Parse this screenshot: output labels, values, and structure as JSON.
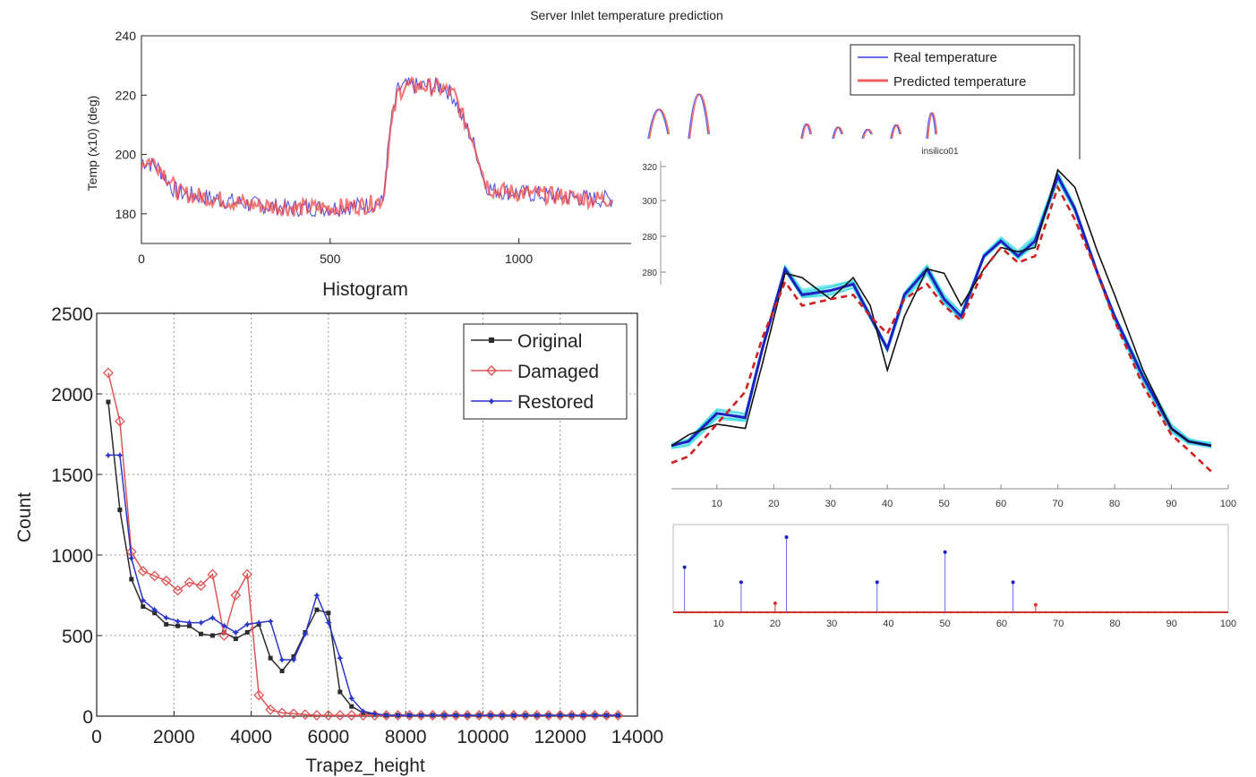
{
  "charts": {
    "server": {
      "title": "Server Inlet temperature prediction",
      "ylabel": "Temp (x10) (deg)",
      "xticks": [
        0,
        500,
        1000
      ],
      "yticks": [
        180,
        200,
        220,
        240
      ],
      "legend": [
        "Real temperature",
        "Predicted temperature"
      ],
      "colors": {
        "real": "#3a3ae0",
        "pred": "#ee4040"
      }
    },
    "histogram": {
      "title": "Histogram",
      "xlabel": "Trapez_height",
      "ylabel": "Count",
      "xticks": [
        0,
        2000,
        4000,
        6000,
        8000,
        10000,
        12000,
        14000
      ],
      "yticks": [
        0,
        500,
        1000,
        1500,
        2000,
        2500
      ],
      "legend": [
        "Original",
        "Damaged",
        "Restored"
      ]
    },
    "insilico": {
      "label": "insilico01"
    },
    "curves": {
      "xticks": [
        10,
        20,
        30,
        40,
        50,
        60,
        70,
        80,
        90,
        100
      ],
      "yticks_top": [
        320,
        300,
        280,
        "280"
      ]
    },
    "stem": {
      "xticks": [
        10,
        20,
        30,
        40,
        50,
        60,
        70,
        80,
        90,
        100
      ]
    }
  },
  "chart_data": [
    {
      "type": "line",
      "title": "Server Inlet temperature prediction",
      "ylabel": "Temp (x10) (deg)",
      "xlim": [
        0,
        1250
      ],
      "ylim": [
        170,
        240
      ],
      "grid": false,
      "legend_position": "top-right",
      "series": [
        {
          "name": "Real temperature",
          "color": "#3a3ae0",
          "x": [
            0,
            20,
            40,
            60,
            80,
            100,
            150,
            200,
            300,
            400,
            500,
            600,
            640,
            660,
            680,
            700,
            750,
            800,
            830,
            850,
            870,
            890,
            910,
            930,
            1000,
            1100,
            1200,
            1250
          ],
          "y": [
            198,
            197,
            196,
            193,
            189,
            187,
            186,
            185,
            183,
            182,
            182,
            183,
            184,
            210,
            222,
            223,
            223,
            223,
            219,
            212,
            207,
            200,
            190,
            188,
            187,
            186,
            185,
            185
          ]
        },
        {
          "name": "Predicted temperature",
          "color": "#ee4040",
          "x": [
            0,
            20,
            40,
            60,
            80,
            100,
            150,
            200,
            300,
            400,
            500,
            600,
            640,
            660,
            680,
            700,
            750,
            800,
            830,
            850,
            870,
            890,
            910,
            930,
            1000,
            1100,
            1200,
            1250
          ],
          "y": [
            197,
            198,
            197,
            194,
            190,
            187,
            186,
            185,
            183,
            182,
            182,
            183,
            185,
            208,
            221,
            223,
            223,
            222,
            220,
            213,
            208,
            201,
            191,
            188,
            187,
            186,
            185,
            185
          ]
        }
      ]
    },
    {
      "type": "line",
      "title": "Histogram",
      "xlabel": "Trapez_height",
      "ylabel": "Count",
      "xlim": [
        0,
        14000
      ],
      "ylim": [
        0,
        2500
      ],
      "grid": true,
      "legend_position": "top-right",
      "series": [
        {
          "name": "Original",
          "color": "#2b2b2b",
          "marker": "square",
          "x": [
            300,
            600,
            900,
            1200,
            1500,
            1800,
            2100,
            2400,
            2700,
            3000,
            3300,
            3600,
            3900,
            4200,
            4500,
            4800,
            5100,
            5400,
            5700,
            6000,
            6300,
            6600,
            6900,
            7200,
            7500,
            7800,
            8100,
            8400,
            8700,
            9000,
            9300,
            9600,
            9900,
            10200,
            10500,
            10800,
            11100,
            11400,
            11700,
            12000,
            12300,
            12600,
            12900,
            13200,
            13500
          ],
          "y": [
            1950,
            1280,
            850,
            680,
            640,
            570,
            560,
            560,
            510,
            500,
            520,
            480,
            520,
            570,
            360,
            280,
            370,
            520,
            660,
            640,
            150,
            60,
            20,
            10,
            5,
            5,
            5,
            5,
            5,
            5,
            5,
            5,
            5,
            5,
            5,
            5,
            5,
            5,
            5,
            5,
            5,
            5,
            5,
            5,
            5
          ]
        },
        {
          "name": "Damaged",
          "color": "#dd5555",
          "marker": "diamond",
          "x": [
            300,
            600,
            900,
            1200,
            1500,
            1800,
            2100,
            2400,
            2700,
            3000,
            3300,
            3600,
            3900,
            4200,
            4500,
            4800,
            5100,
            5400,
            5700,
            6000,
            6300,
            6600,
            6900,
            7200,
            7500,
            7800,
            8100,
            8400,
            8700,
            9000,
            9300,
            9600,
            9900,
            10200,
            10500,
            10800,
            11100,
            11400,
            11700,
            12000,
            12300,
            12600,
            12900,
            13200,
            13500
          ],
          "y": [
            2130,
            1830,
            1020,
            900,
            870,
            840,
            780,
            830,
            810,
            880,
            500,
            750,
            880,
            130,
            40,
            20,
            15,
            10,
            5,
            5,
            5,
            5,
            5,
            5,
            5,
            5,
            5,
            5,
            5,
            5,
            5,
            5,
            5,
            5,
            5,
            5,
            5,
            5,
            5,
            5,
            5,
            5,
            5,
            5,
            5
          ]
        },
        {
          "name": "Restored",
          "color": "#2b36c8",
          "marker": "star",
          "x": [
            300,
            600,
            900,
            1200,
            1500,
            1800,
            2100,
            2400,
            2700,
            3000,
            3300,
            3600,
            3900,
            4200,
            4500,
            4800,
            5100,
            5400,
            5700,
            6000,
            6300,
            6600,
            6900,
            7200,
            7500,
            7800,
            8100,
            8400,
            8700,
            9000,
            9300,
            9600,
            9900,
            10200,
            10500,
            10800,
            11100,
            11400,
            11700,
            12000,
            12300,
            12600,
            12900,
            13200,
            13500
          ],
          "y": [
            1620,
            1620,
            980,
            720,
            660,
            610,
            590,
            580,
            580,
            610,
            560,
            520,
            570,
            580,
            590,
            350,
            350,
            510,
            750,
            580,
            360,
            110,
            30,
            15,
            5,
            5,
            5,
            5,
            5,
            5,
            5,
            5,
            5,
            5,
            5,
            5,
            5,
            5,
            5,
            5,
            5,
            5,
            5,
            5,
            5
          ]
        }
      ]
    },
    {
      "type": "line",
      "xlim": [
        2,
        100
      ],
      "ylim": [
        160,
        310
      ],
      "series": [
        {
          "color": "#2020c0",
          "x": [
            2,
            5,
            10,
            15,
            18,
            22,
            25,
            30,
            34,
            37,
            40,
            43,
            47,
            50,
            53,
            57,
            60,
            63,
            66,
            70,
            73,
            77,
            80,
            85,
            90,
            93,
            97
          ],
          "y": [
            180,
            182,
            195,
            193,
            225,
            262,
            250,
            252,
            255,
            240,
            225,
            250,
            262,
            248,
            240,
            268,
            275,
            268,
            275,
            305,
            290,
            260,
            240,
            212,
            188,
            182,
            180
          ]
        },
        {
          "color": "#111111",
          "x": [
            2,
            5,
            10,
            15,
            18,
            22,
            25,
            30,
            34,
            37,
            40,
            43,
            47,
            50,
            53,
            57,
            60,
            63,
            66,
            70,
            73,
            77,
            80,
            85,
            90,
            93,
            97
          ],
          "y": [
            180,
            185,
            190,
            188,
            218,
            260,
            258,
            248,
            258,
            245,
            215,
            240,
            262,
            260,
            245,
            262,
            272,
            270,
            272,
            308,
            300,
            270,
            250,
            215,
            188,
            182,
            180
          ]
        },
        {
          "color": "#cc2222",
          "x": [
            2,
            5,
            10,
            15,
            18,
            22,
            25,
            30,
            34,
            37,
            40,
            43,
            47,
            50,
            53,
            57,
            60,
            63,
            66,
            70,
            73,
            77,
            80,
            85,
            90,
            93,
            97
          ],
          "y": [
            172,
            175,
            190,
            205,
            230,
            256,
            245,
            248,
            250,
            240,
            232,
            248,
            255,
            245,
            238,
            262,
            272,
            265,
            268,
            300,
            285,
            260,
            238,
            208,
            185,
            178,
            168
          ]
        }
      ]
    },
    {
      "type": "bar",
      "xlim": [
        2,
        100
      ],
      "series": [
        {
          "color": "#2020c0",
          "x": [
            4,
            14,
            22,
            38,
            50,
            62
          ],
          "values": [
            0.6,
            0.4,
            1.0,
            0.4,
            0.8,
            0.4
          ]
        },
        {
          "color": "#dd3333",
          "x": [
            20,
            66
          ],
          "values": [
            0.12,
            0.1
          ]
        }
      ]
    }
  ]
}
